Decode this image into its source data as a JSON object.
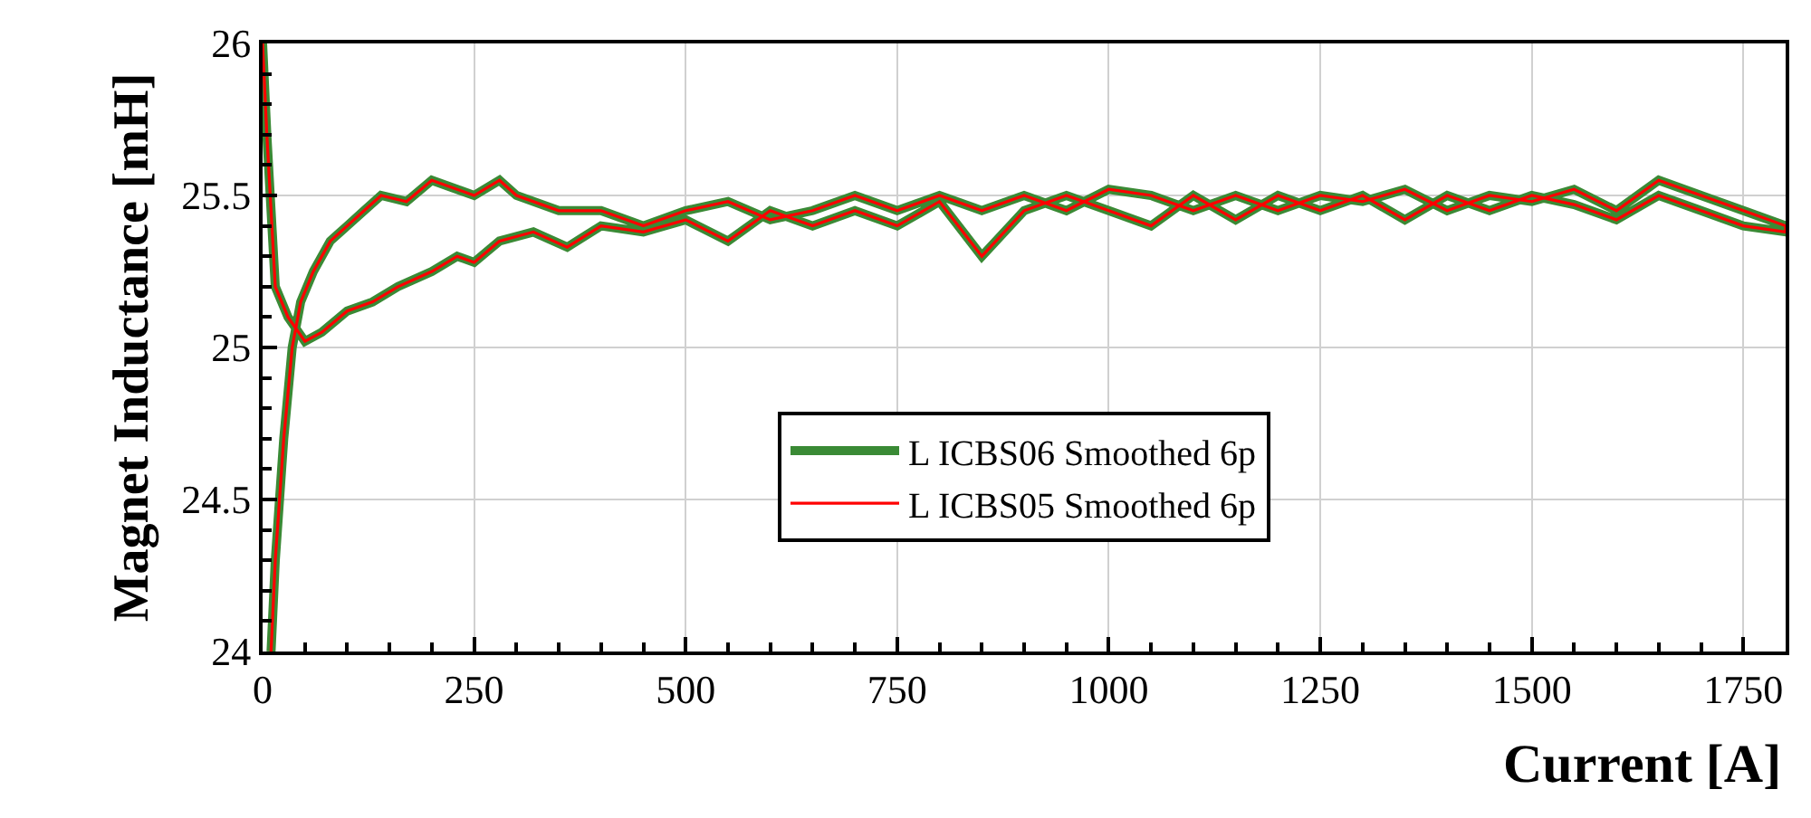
{
  "chart_data": {
    "type": "line",
    "xlabel": "Current [A]",
    "ylabel": "Magnet Inductance [mH]",
    "xlim": [
      0,
      1800
    ],
    "xticks": [
      0,
      250,
      500,
      750,
      1000,
      1250,
      1500,
      1750
    ],
    "ylim": [
      24,
      26
    ],
    "yticks": [
      24,
      24.5,
      25,
      25.5,
      26
    ],
    "grid": true,
    "legend": "bottom",
    "marker": "none",
    "line_style": "solid",
    "series": [
      {
        "name": "L ICBS06 Smoothed 6p",
        "color": "#3a8a35",
        "x": [
          0,
          5,
          15,
          30,
          50,
          70,
          100,
          130,
          160,
          200,
          230,
          250,
          280,
          320,
          360,
          400,
          450,
          500,
          550,
          600,
          650,
          700,
          750,
          800,
          850,
          900,
          950,
          1000,
          1050,
          1100,
          1150,
          1200,
          1250,
          1300,
          1350,
          1400,
          1450,
          1500,
          1550,
          1600,
          1650,
          1700,
          1750,
          1800,
          1800,
          1750,
          1700,
          1650,
          1600,
          1550,
          1500,
          1450,
          1400,
          1350,
          1300,
          1250,
          1200,
          1150,
          1100,
          1050,
          1000,
          950,
          900,
          850,
          800,
          750,
          700,
          650,
          600,
          550,
          500,
          450,
          400,
          350,
          300,
          280,
          250,
          200,
          170,
          140,
          120,
          100,
          80,
          60,
          45,
          35,
          25,
          15,
          10
        ],
        "values": [
          26,
          25.7,
          25.2,
          25.1,
          25.02,
          25.05,
          25.12,
          25.15,
          25.2,
          25.25,
          25.3,
          25.28,
          25.35,
          25.38,
          25.33,
          25.4,
          25.38,
          25.42,
          25.35,
          25.45,
          25.4,
          25.45,
          25.4,
          25.48,
          25.3,
          25.45,
          25.5,
          25.45,
          25.4,
          25.5,
          25.42,
          25.5,
          25.45,
          25.5,
          25.42,
          25.5,
          25.45,
          25.5,
          25.47,
          25.42,
          25.5,
          25.45,
          25.4,
          25.38,
          25.4,
          25.45,
          25.5,
          25.55,
          25.45,
          25.52,
          25.48,
          25.5,
          25.45,
          25.52,
          25.48,
          25.5,
          25.45,
          25.5,
          25.45,
          25.5,
          25.52,
          25.45,
          25.5,
          25.45,
          25.5,
          25.45,
          25.5,
          25.45,
          25.42,
          25.48,
          25.45,
          25.4,
          25.45,
          25.45,
          25.5,
          25.55,
          25.5,
          25.55,
          25.48,
          25.5,
          25.45,
          25.4,
          25.35,
          25.25,
          25.15,
          25.0,
          24.7,
          24.3,
          24
        ]
      },
      {
        "name": "L ICBS05 Smoothed 6p",
        "color": "#ff0000",
        "x": [
          0,
          5,
          15,
          30,
          50,
          70,
          100,
          130,
          160,
          200,
          230,
          250,
          280,
          320,
          360,
          400,
          450,
          500,
          550,
          600,
          650,
          700,
          750,
          800,
          850,
          900,
          950,
          1000,
          1050,
          1100,
          1150,
          1200,
          1250,
          1300,
          1350,
          1400,
          1450,
          1500,
          1550,
          1600,
          1650,
          1700,
          1750,
          1800,
          1800,
          1750,
          1700,
          1650,
          1600,
          1550,
          1500,
          1450,
          1400,
          1350,
          1300,
          1250,
          1200,
          1150,
          1100,
          1050,
          1000,
          950,
          900,
          850,
          800,
          750,
          700,
          650,
          600,
          550,
          500,
          450,
          400,
          350,
          300,
          280,
          250,
          200,
          170,
          140,
          120,
          100,
          80,
          60,
          45,
          35,
          25,
          15,
          10
        ],
        "values": [
          26,
          25.7,
          25.2,
          25.1,
          25.02,
          25.05,
          25.12,
          25.15,
          25.2,
          25.25,
          25.3,
          25.28,
          25.35,
          25.38,
          25.33,
          25.4,
          25.38,
          25.42,
          25.35,
          25.45,
          25.4,
          25.45,
          25.4,
          25.48,
          25.3,
          25.45,
          25.5,
          25.45,
          25.4,
          25.5,
          25.42,
          25.5,
          25.45,
          25.5,
          25.42,
          25.5,
          25.45,
          25.5,
          25.47,
          25.42,
          25.5,
          25.45,
          25.4,
          25.38,
          25.4,
          25.45,
          25.5,
          25.55,
          25.45,
          25.52,
          25.48,
          25.5,
          25.45,
          25.52,
          25.48,
          25.5,
          25.45,
          25.5,
          25.45,
          25.5,
          25.52,
          25.45,
          25.5,
          25.45,
          25.5,
          25.45,
          25.5,
          25.45,
          25.42,
          25.48,
          25.45,
          25.4,
          25.45,
          25.45,
          25.5,
          25.55,
          25.5,
          25.55,
          25.48,
          25.5,
          25.45,
          25.4,
          25.35,
          25.25,
          25.15,
          25.0,
          24.7,
          24.3,
          24
        ]
      }
    ]
  }
}
